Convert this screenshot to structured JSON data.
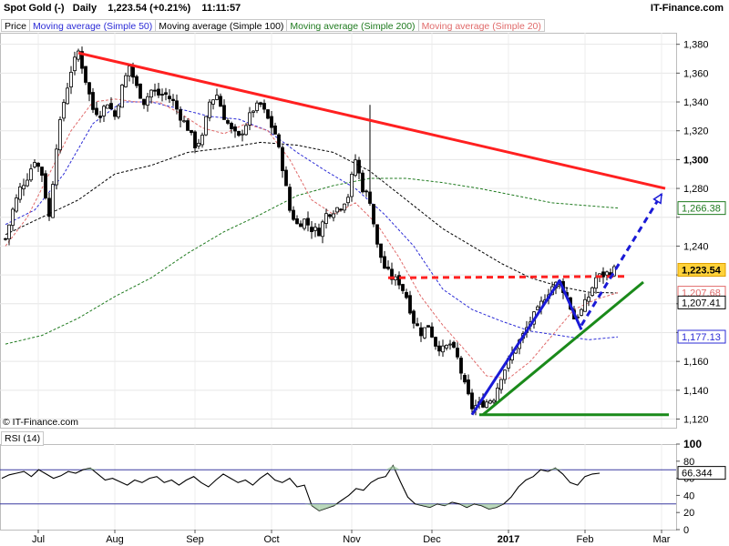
{
  "header": {
    "symbol": "Spot Gold (-)",
    "period": "Daily",
    "last": "1,223.54 (+0.21%)",
    "time": "11:11:57",
    "brand": "IT-Finance.com"
  },
  "legend": [
    {
      "label": "Price",
      "color": "#000000"
    },
    {
      "label": "Moving average (Simple 50)",
      "color": "#2b2bd6"
    },
    {
      "label": "Moving average (Simple 100)",
      "color": "#000000"
    },
    {
      "label": "Moving average (Simple 200)",
      "color": "#1e7a1e"
    },
    {
      "label": "Moving average (Simple 20)",
      "color": "#e06a6a"
    }
  ],
  "copyright": "© IT-Finance.com",
  "rsi": {
    "label": "RSI (14)",
    "ticks": [
      100,
      80,
      60,
      40,
      20,
      0
    ],
    "levels": [
      70,
      30
    ],
    "last": "66.344",
    "series": [
      [
        0,
        60
      ],
      [
        3,
        64
      ],
      [
        6,
        66
      ],
      [
        9,
        68
      ],
      [
        12,
        62
      ],
      [
        15,
        70
      ],
      [
        18,
        65
      ],
      [
        21,
        60
      ],
      [
        24,
        63
      ],
      [
        27,
        68
      ],
      [
        30,
        66
      ],
      [
        33,
        70
      ],
      [
        36,
        72
      ],
      [
        39,
        65
      ],
      [
        42,
        58
      ],
      [
        45,
        60
      ],
      [
        48,
        56
      ],
      [
        51,
        52
      ],
      [
        54,
        58
      ],
      [
        57,
        55
      ],
      [
        60,
        60
      ],
      [
        63,
        62
      ],
      [
        66,
        55
      ],
      [
        69,
        58
      ],
      [
        72,
        52
      ],
      [
        75,
        58
      ],
      [
        78,
        62
      ],
      [
        81,
        55
      ],
      [
        84,
        50
      ],
      [
        87,
        58
      ],
      [
        90,
        65
      ],
      [
        93,
        60
      ],
      [
        96,
        55
      ],
      [
        99,
        58
      ],
      [
        102,
        52
      ],
      [
        105,
        60
      ],
      [
        108,
        66
      ],
      [
        111,
        58
      ],
      [
        114,
        55
      ],
      [
        117,
        60
      ],
      [
        120,
        50
      ],
      [
        123,
        52
      ],
      [
        126,
        28
      ],
      [
        129,
        22
      ],
      [
        132,
        25
      ],
      [
        135,
        28
      ],
      [
        138,
        34
      ],
      [
        141,
        40
      ],
      [
        144,
        48
      ],
      [
        147,
        46
      ],
      [
        150,
        55
      ],
      [
        153,
        60
      ],
      [
        156,
        62
      ],
      [
        159,
        75
      ],
      [
        162,
        56
      ],
      [
        165,
        38
      ],
      [
        168,
        30
      ],
      [
        171,
        28
      ],
      [
        174,
        26
      ],
      [
        177,
        30
      ],
      [
        180,
        28
      ],
      [
        183,
        32
      ],
      [
        186,
        30
      ],
      [
        189,
        26
      ],
      [
        192,
        30
      ],
      [
        195,
        28
      ],
      [
        198,
        24
      ],
      [
        201,
        26
      ],
      [
        204,
        30
      ],
      [
        207,
        38
      ],
      [
        210,
        50
      ],
      [
        213,
        58
      ],
      [
        216,
        62
      ],
      [
        219,
        70
      ],
      [
        222,
        68
      ],
      [
        225,
        72
      ],
      [
        228,
        65
      ],
      [
        231,
        55
      ],
      [
        234,
        52
      ],
      [
        237,
        62
      ],
      [
        240,
        65
      ],
      [
        243,
        66
      ]
    ]
  },
  "chart_data": {
    "type": "candlestick",
    "y_axis_side": "right",
    "y_ticks": [
      1380,
      1360,
      1340,
      1320,
      1300,
      1280,
      1260,
      1240,
      1220,
      1200,
      1180,
      1160,
      1140,
      1120
    ],
    "y_ticks_shown": [
      "1,380",
      "1,360",
      "1,340",
      "1,320",
      "1,300",
      "1,280",
      "",
      "1,240",
      "",
      "",
      "",
      "1,160",
      "1,140",
      "1,120"
    ],
    "ylim": [
      1114,
      1388
    ],
    "x_axis": "trading days since 2016-06-22",
    "x_labels": [
      {
        "label": "Jul",
        "x": 9
      },
      {
        "label": "Aug",
        "x": 30
      },
      {
        "label": "Sep",
        "x": 52
      },
      {
        "label": "Oct",
        "x": 73
      },
      {
        "label": "Nov",
        "x": 95
      },
      {
        "label": "Dec",
        "x": 117
      },
      {
        "label": "2017",
        "x": 138,
        "bold": true
      },
      {
        "label": "Feb",
        "x": 159
      },
      {
        "label": "Mar",
        "x": 180
      }
    ],
    "price": [
      [
        0,
        1245
      ],
      [
        2,
        1265
      ],
      [
        4,
        1280
      ],
      [
        6,
        1288
      ],
      [
        8,
        1300
      ],
      [
        10,
        1290
      ],
      [
        12,
        1260
      ],
      [
        14,
        1310
      ],
      [
        16,
        1340
      ],
      [
        18,
        1362
      ],
      [
        20,
        1375
      ],
      [
        22,
        1355
      ],
      [
        24,
        1335
      ],
      [
        26,
        1332
      ],
      [
        28,
        1340
      ],
      [
        30,
        1330
      ],
      [
        32,
        1350
      ],
      [
        34,
        1365
      ],
      [
        36,
        1350
      ],
      [
        38,
        1340
      ],
      [
        40,
        1348
      ],
      [
        42,
        1345
      ],
      [
        44,
        1345
      ],
      [
        46,
        1340
      ],
      [
        48,
        1330
      ],
      [
        50,
        1322
      ],
      [
        52,
        1310
      ],
      [
        54,
        1315
      ],
      [
        56,
        1340
      ],
      [
        58,
        1345
      ],
      [
        60,
        1330
      ],
      [
        62,
        1320
      ],
      [
        64,
        1315
      ],
      [
        66,
        1325
      ],
      [
        68,
        1335
      ],
      [
        70,
        1338
      ],
      [
        72,
        1328
      ],
      [
        74,
        1318
      ],
      [
        76,
        1295
      ],
      [
        78,
        1265
      ],
      [
        80,
        1255
      ],
      [
        82,
        1258
      ],
      [
        84,
        1252
      ],
      [
        86,
        1250
      ],
      [
        88,
        1262
      ],
      [
        90,
        1265
      ],
      [
        92,
        1268
      ],
      [
        94,
        1275
      ],
      [
        96,
        1300
      ],
      [
        98,
        1280
      ],
      [
        100,
        1272
      ],
      [
        102,
        1240
      ],
      [
        104,
        1225
      ],
      [
        106,
        1218
      ],
      [
        108,
        1215
      ],
      [
        110,
        1205
      ],
      [
        112,
        1188
      ],
      [
        114,
        1180
      ],
      [
        116,
        1185
      ],
      [
        118,
        1172
      ],
      [
        120,
        1168
      ],
      [
        122,
        1172
      ],
      [
        124,
        1162
      ],
      [
        126,
        1143
      ],
      [
        128,
        1128
      ],
      [
        130,
        1130
      ],
      [
        132,
        1132
      ],
      [
        134,
        1135
      ],
      [
        136,
        1150
      ],
      [
        138,
        1160
      ],
      [
        140,
        1170
      ],
      [
        142,
        1178
      ],
      [
        144,
        1188
      ],
      [
        146,
        1195
      ],
      [
        148,
        1205
      ],
      [
        150,
        1212
      ],
      [
        152,
        1215
      ],
      [
        154,
        1205
      ],
      [
        156,
        1190
      ],
      [
        158,
        1195
      ],
      [
        160,
        1205
      ],
      [
        162,
        1218
      ],
      [
        164,
        1220
      ],
      [
        166,
        1222
      ],
      [
        167,
        1223.54
      ]
    ],
    "price_last": "1,223.54",
    "ma50": {
      "name": "Moving average (Simple 50)",
      "color": "#2b2bd6",
      "last": "1,177.13",
      "values": [
        [
          0,
          1255
        ],
        [
          8,
          1265
        ],
        [
          16,
          1290
        ],
        [
          24,
          1325
        ],
        [
          32,
          1340
        ],
        [
          40,
          1340
        ],
        [
          48,
          1335
        ],
        [
          56,
          1330
        ],
        [
          64,
          1328
        ],
        [
          72,
          1320
        ],
        [
          80,
          1305
        ],
        [
          88,
          1292
        ],
        [
          96,
          1280
        ],
        [
          104,
          1262
        ],
        [
          112,
          1240
        ],
        [
          120,
          1210
        ],
        [
          128,
          1196
        ],
        [
          136,
          1188
        ],
        [
          144,
          1181
        ],
        [
          152,
          1178
        ],
        [
          160,
          1175
        ],
        [
          168,
          1177
        ]
      ]
    },
    "ma100": {
      "name": "Moving average (Simple 100)",
      "color": "#000000",
      "last": "1,207.41",
      "values": [
        [
          0,
          1248
        ],
        [
          10,
          1260
        ],
        [
          20,
          1272
        ],
        [
          30,
          1290
        ],
        [
          40,
          1296
        ],
        [
          50,
          1305
        ],
        [
          60,
          1308
        ],
        [
          70,
          1312
        ],
        [
          80,
          1310
        ],
        [
          90,
          1305
        ],
        [
          100,
          1292
        ],
        [
          110,
          1272
        ],
        [
          120,
          1252
        ],
        [
          128,
          1240
        ],
        [
          136,
          1228
        ],
        [
          144,
          1218
        ],
        [
          152,
          1212
        ],
        [
          160,
          1208
        ],
        [
          168,
          1207.41
        ]
      ]
    },
    "ma200": {
      "name": "Moving average (Simple 200)",
      "color": "#1e7a1e",
      "last": "1,266.38",
      "values": [
        [
          0,
          1172
        ],
        [
          10,
          1178
        ],
        [
          20,
          1190
        ],
        [
          30,
          1205
        ],
        [
          40,
          1218
        ],
        [
          50,
          1235
        ],
        [
          60,
          1250
        ],
        [
          70,
          1262
        ],
        [
          80,
          1275
        ],
        [
          90,
          1282
        ],
        [
          100,
          1287
        ],
        [
          110,
          1287
        ],
        [
          120,
          1284
        ],
        [
          130,
          1280
        ],
        [
          140,
          1275
        ],
        [
          150,
          1270
        ],
        [
          160,
          1268
        ],
        [
          168,
          1266.38
        ]
      ]
    },
    "ma20": {
      "name": "Moving average (Simple 20)",
      "color": "#e06a6a",
      "last": "1,207.68",
      "values": [
        [
          0,
          1240
        ],
        [
          6,
          1260
        ],
        [
          12,
          1290
        ],
        [
          18,
          1320
        ],
        [
          24,
          1340
        ],
        [
          30,
          1342
        ],
        [
          36,
          1340
        ],
        [
          42,
          1340
        ],
        [
          48,
          1332
        ],
        [
          54,
          1322
        ],
        [
          60,
          1318
        ],
        [
          66,
          1325
        ],
        [
          72,
          1320
        ],
        [
          78,
          1300
        ],
        [
          84,
          1272
        ],
        [
          90,
          1262
        ],
        [
          96,
          1270
        ],
        [
          102,
          1255
        ],
        [
          108,
          1232
        ],
        [
          114,
          1205
        ],
        [
          120,
          1185
        ],
        [
          126,
          1168
        ],
        [
          132,
          1150
        ],
        [
          138,
          1148
        ],
        [
          144,
          1160
        ],
        [
          150,
          1178
        ],
        [
          156,
          1196
        ],
        [
          162,
          1203
        ],
        [
          168,
          1207.68
        ]
      ]
    },
    "annotations": [
      {
        "kind": "trendline",
        "color": "#ff2020",
        "points": [
          [
            20,
            1374
          ],
          [
            181,
            1280
          ]
        ]
      },
      {
        "kind": "dashed-level",
        "color": "#ff2020",
        "points": [
          [
            105,
            1218
          ],
          [
            170,
            1219
          ]
        ]
      },
      {
        "kind": "trendline",
        "color": "#1a8a1a",
        "points": [
          [
            130,
            1123
          ],
          [
            182,
            1123
          ]
        ]
      },
      {
        "kind": "trendline",
        "color": "#1a8a1a",
        "points": [
          [
            131,
            1123
          ],
          [
            175,
            1215
          ]
        ]
      },
      {
        "kind": "pattern",
        "color": "#1a1ad6",
        "points": [
          [
            128,
            1123
          ],
          [
            152,
            1216
          ],
          [
            158,
            1182
          ]
        ]
      },
      {
        "kind": "dashed-projection",
        "color": "#1a1ad6",
        "points": [
          [
            158,
            1185
          ],
          [
            180,
            1276
          ]
        ]
      }
    ]
  }
}
